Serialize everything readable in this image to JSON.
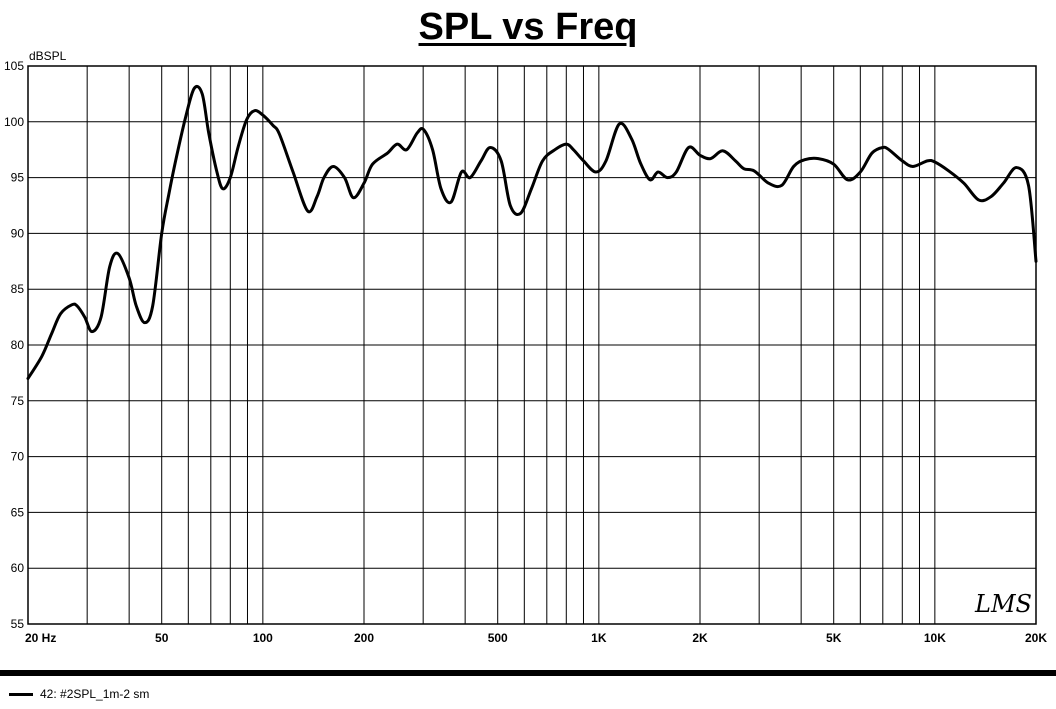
{
  "chart_data": {
    "type": "line",
    "title": "SPL vs Freq",
    "ylabel": "dBSPL",
    "xlabel": "",
    "xscale": "log",
    "xlim": [
      20,
      20000
    ],
    "ylim": [
      55,
      105
    ],
    "grid": true,
    "y_ticks": [
      105,
      100,
      95,
      90,
      85,
      80,
      75,
      70,
      65,
      60,
      55
    ],
    "x_tick_labels": [
      {
        "value": 20,
        "label": "20  Hz"
      },
      {
        "value": 50,
        "label": "50"
      },
      {
        "value": 100,
        "label": "100"
      },
      {
        "value": 200,
        "label": "200"
      },
      {
        "value": 500,
        "label": "500"
      },
      {
        "value": 1000,
        "label": "1K"
      },
      {
        "value": 2000,
        "label": "2K"
      },
      {
        "value": 5000,
        "label": "5K"
      },
      {
        "value": 10000,
        "label": "10K"
      },
      {
        "value": 20000,
        "label": "20K"
      }
    ],
    "watermark": "LMS",
    "series": [
      {
        "name": "42: #2SPL_1m-2 sm",
        "color": "#000000",
        "x": [
          20,
          22,
          23.5,
          25,
          27,
          28,
          29.5,
          31,
          33,
          35,
          37,
          40,
          42,
          44.5,
          47,
          50,
          52.5,
          55,
          59,
          62.5,
          66,
          69,
          73,
          76,
          80,
          84.5,
          89.5,
          94.5,
          100,
          107,
          112,
          123,
          136,
          145,
          152,
          162,
          175,
          186,
          200,
          212,
          235,
          251,
          268,
          288,
          301,
          320,
          339,
          363,
          390,
          414,
          446,
          475,
          512,
          545,
          585,
          630,
          680,
          740,
          800,
          840,
          900,
          980,
          1050,
          1150,
          1250,
          1330,
          1420,
          1500,
          1600,
          1700,
          1850,
          2000,
          2150,
          2340,
          2550,
          2700,
          2900,
          3200,
          3500,
          3800,
          4100,
          4500,
          5000,
          5500,
          6000,
          6500,
          7000,
          7300,
          8000,
          8600,
          9500,
          10000,
          11000,
          12200,
          13500,
          14700,
          16000,
          17500,
          19000,
          20000
        ],
        "y": [
          77,
          79,
          81,
          82.8,
          83.6,
          83.5,
          82.5,
          81.2,
          82.5,
          87,
          88.2,
          86,
          83.5,
          82,
          83.5,
          90,
          93.5,
          96.5,
          100.5,
          103,
          102.5,
          99,
          95.5,
          94,
          95,
          97.8,
          100.2,
          101,
          100.6,
          99.7,
          98.9,
          95.5,
          92,
          93.3,
          95,
          96,
          95,
          93.2,
          94.5,
          96.2,
          97.2,
          98,
          97.5,
          99,
          99.3,
          97.5,
          94,
          92.8,
          95.5,
          95,
          96.5,
          97.7,
          96.5,
          92.5,
          91.8,
          94,
          96.5,
          97.5,
          98,
          97.5,
          96.5,
          95.5,
          96.5,
          99.8,
          98.5,
          96.3,
          94.8,
          95.5,
          95,
          95.5,
          97.7,
          97,
          96.7,
          97.4,
          96.5,
          95.8,
          95.6,
          94.5,
          94.3,
          96,
          96.6,
          96.7,
          96.2,
          94.8,
          95.5,
          97.2,
          97.7,
          97.5,
          96.5,
          96,
          96.5,
          96.4,
          95.6,
          94.5,
          93,
          93.3,
          94.5,
          95.9,
          94.3,
          87.5
        ]
      }
    ]
  }
}
